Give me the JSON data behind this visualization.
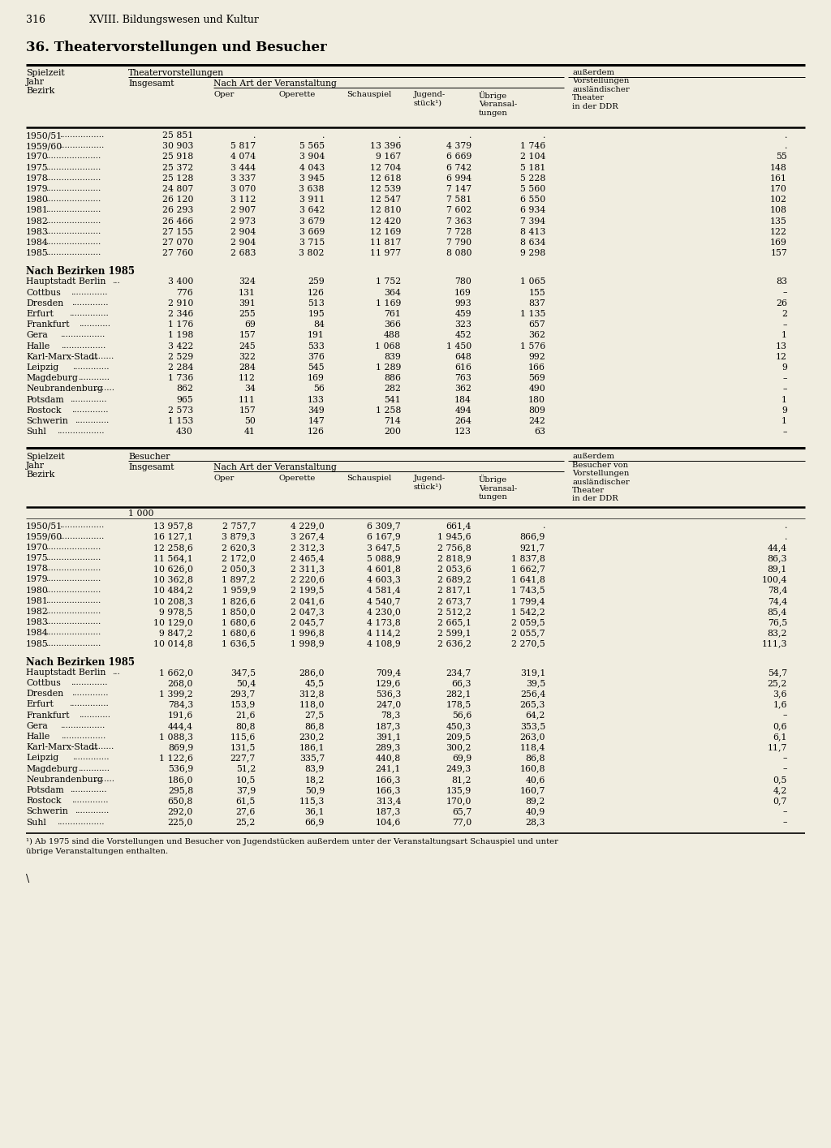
{
  "page_num": "316",
  "chapter": "XVIII. Bildungswesen und Kultur",
  "title": "36. Theatervorstellungen und Besucher",
  "bg_color": "#f0ede0",
  "text_color": "#000000",
  "table1_header_theatervorstellungen": "Theatervorstellungen",
  "table1_header_insgesamt": "Insgesamt",
  "table1_header_nach_art": "Nach Art der Veranstaltung",
  "table2_header_besucher": "Besucher",
  "table2_unit": "1 000",
  "col1_ausland_t1": "außerdem\nVorstellungen\nausländischer\nTheater\nin der DDR",
  "col1_ausland_t2": "außerdem\nBesucher von\nVorstellungen\nausländischer\nTheater\nin der DDR",
  "years_data": [
    [
      "1950/51",
      "25 851",
      ".",
      ".",
      ".",
      ".",
      ".",
      "."
    ],
    [
      "1959/60",
      "30 903",
      "5 817",
      "5 565",
      "13 396",
      "4 379",
      "1 746",
      "."
    ],
    [
      "1970",
      "25 918",
      "4 074",
      "3 904",
      "9 167",
      "6 669",
      "2 104",
      "55"
    ],
    [
      "1975",
      "25 372",
      "3 444",
      "4 043",
      "12 704",
      "6 742",
      "5 181",
      "148"
    ],
    [
      "1978",
      "25 128",
      "3 337",
      "3 945",
      "12 618",
      "6 994",
      "5 228",
      "161"
    ],
    [
      "1979",
      "24 807",
      "3 070",
      "3 638",
      "12 539",
      "7 147",
      "5 560",
      "170"
    ],
    [
      "1980",
      "26 120",
      "3 112",
      "3 911",
      "12 547",
      "7 581",
      "6 550",
      "102"
    ],
    [
      "1981",
      "26 293",
      "2 907",
      "3 642",
      "12 810",
      "7 602",
      "6 934",
      "108"
    ],
    [
      "1982",
      "26 466",
      "2 973",
      "3 679",
      "12 420",
      "7 363",
      "7 394",
      "135"
    ],
    [
      "1983",
      "27 155",
      "2 904",
      "3 669",
      "12 169",
      "7 728",
      "8 413",
      "122"
    ],
    [
      "1984",
      "27 070",
      "2 904",
      "3 715",
      "11 817",
      "7 790",
      "8 634",
      "169"
    ],
    [
      "1985",
      "27 760",
      "2 683",
      "3 802",
      "11 977",
      "8 080",
      "9 298",
      "157"
    ]
  ],
  "bezirk1_label": "Nach Bezirken 1985",
  "bezirk1_data": [
    [
      "Hauptstadt Berlin",
      "3 400",
      "324",
      "259",
      "1 752",
      "780",
      "1 065",
      "83"
    ],
    [
      "Cottbus",
      "776",
      "131",
      "126",
      "364",
      "169",
      "155",
      "–"
    ],
    [
      "Dresden",
      "2 910",
      "391",
      "513",
      "1 169",
      "993",
      "837",
      "26"
    ],
    [
      "Erfurt",
      "2 346",
      "255",
      "195",
      "761",
      "459",
      "1 135",
      "2"
    ],
    [
      "Frankfurt",
      "1 176",
      "69",
      "84",
      "366",
      "323",
      "657",
      "–"
    ],
    [
      "Gera",
      "1 198",
      "157",
      "191",
      "488",
      "452",
      "362",
      "1"
    ],
    [
      "Halle",
      "3 422",
      "245",
      "533",
      "1 068",
      "1 450",
      "1 576",
      "13"
    ],
    [
      "Karl-Marx-Stadt",
      "2 529",
      "322",
      "376",
      "839",
      "648",
      "992",
      "12"
    ],
    [
      "Leipzig",
      "2 284",
      "284",
      "545",
      "1 289",
      "616",
      "166",
      "9"
    ],
    [
      "Magdeburg",
      "1 736",
      "112",
      "169",
      "886",
      "763",
      "569",
      "–"
    ],
    [
      "Neubrandenburg",
      "862",
      "34",
      "56",
      "282",
      "362",
      "490",
      "–"
    ],
    [
      "Potsdam",
      "965",
      "111",
      "133",
      "541",
      "184",
      "180",
      "1"
    ],
    [
      "Rostock",
      "2 573",
      "157",
      "349",
      "1 258",
      "494",
      "809",
      "9"
    ],
    [
      "Schwerin",
      "1 153",
      "50",
      "147",
      "714",
      "264",
      "242",
      "1"
    ],
    [
      "Suhl",
      "430",
      "41",
      "126",
      "200",
      "123",
      "63",
      "–"
    ]
  ],
  "years_data2": [
    [
      "1950/51",
      "13 957,8",
      "2 757,7",
      "4 229,0",
      "6 309,7",
      "661,4",
      ".",
      "."
    ],
    [
      "1959/60",
      "16 127,1",
      "3 879,3",
      "3 267,4",
      "6 167,9",
      "1 945,6",
      "866,9",
      "."
    ],
    [
      "1970",
      "12 258,6",
      "2 620,3",
      "2 312,3",
      "3 647,5",
      "2 756,8",
      "921,7",
      "44,4"
    ],
    [
      "1975",
      "11 564,1",
      "2 172,0",
      "2 465,4",
      "5 088,9",
      "2 818,9",
      "1 837,8",
      "86,3"
    ],
    [
      "1978",
      "10 626,0",
      "2 050,3",
      "2 311,3",
      "4 601,8",
      "2 053,6",
      "1 662,7",
      "89,1"
    ],
    [
      "1979",
      "10 362,8",
      "1 897,2",
      "2 220,6",
      "4 603,3",
      "2 689,2",
      "1 641,8",
      "100,4"
    ],
    [
      "1980",
      "10 484,2",
      "1 959,9",
      "2 199,5",
      "4 581,4",
      "2 817,1",
      "1 743,5",
      "78,4"
    ],
    [
      "1981",
      "10 208,3",
      "1 826,6",
      "2 041,6",
      "4 540,7",
      "2 673,7",
      "1 799,4",
      "74,4"
    ],
    [
      "1982",
      "9 978,5",
      "1 850,0",
      "2 047,3",
      "4 230,0",
      "2 512,2",
      "1 542,2",
      "85,4"
    ],
    [
      "1983",
      "10 129,0",
      "1 680,6",
      "2 045,7",
      "4 173,8",
      "2 665,1",
      "2 059,5",
      "76,5"
    ],
    [
      "1984",
      "9 847,2",
      "1 680,6",
      "1 996,8",
      "4 114,2",
      "2 599,1",
      "2 055,7",
      "83,2"
    ],
    [
      "1985",
      "10 014,8",
      "1 636,5",
      "1 998,9",
      "4 108,9",
      "2 636,2",
      "2 270,5",
      "111,3"
    ]
  ],
  "bezirk2_label": "Nach Bezirken 1985",
  "bezirk2_data": [
    [
      "Hauptstadt Berlin",
      "1 662,0",
      "347,5",
      "286,0",
      "709,4",
      "234,7",
      "319,1",
      "54,7"
    ],
    [
      "Cottbus",
      "268,0",
      "50,4",
      "45,5",
      "129,6",
      "66,3",
      "39,5",
      "25,2"
    ],
    [
      "Dresden",
      "1 399,2",
      "293,7",
      "312,8",
      "536,3",
      "282,1",
      "256,4",
      "3,6"
    ],
    [
      "Erfurt",
      "784,3",
      "153,9",
      "118,0",
      "247,0",
      "178,5",
      "265,3",
      "1,6"
    ],
    [
      "Frankfurt",
      "191,6",
      "21,6",
      "27,5",
      "78,3",
      "56,6",
      "64,2",
      "–"
    ],
    [
      "Gera",
      "444,4",
      "80,8",
      "86,8",
      "187,3",
      "450,3",
      "353,5",
      "0,6"
    ],
    [
      "Halle",
      "1 088,3",
      "115,6",
      "230,2",
      "391,1",
      "209,5",
      "263,0",
      "6,1"
    ],
    [
      "Karl-Marx-Stadt",
      "869,9",
      "131,5",
      "186,1",
      "289,3",
      "300,2",
      "118,4",
      "11,7"
    ],
    [
      "Leipzig",
      "1 122,6",
      "227,7",
      "335,7",
      "440,8",
      "69,9",
      "86,8",
      "–"
    ],
    [
      "Magdeburg",
      "536,9",
      "51,2",
      "83,9",
      "241,1",
      "249,3",
      "160,8",
      "–"
    ],
    [
      "Neubrandenburg",
      "186,0",
      "10,5",
      "18,2",
      "166,3",
      "81,2",
      "40,6",
      "0,5"
    ],
    [
      "Potsdam",
      "295,8",
      "37,9",
      "50,9",
      "166,3",
      "135,9",
      "160,7",
      "4,2"
    ],
    [
      "Rostock",
      "650,8",
      "61,5",
      "115,3",
      "313,4",
      "170,0",
      "89,2",
      "0,7"
    ],
    [
      "Schwerin",
      "292,0",
      "27,6",
      "36,1",
      "187,3",
      "65,7",
      "40,9",
      "–"
    ],
    [
      "Suhl",
      "225,0",
      "25,2",
      "66,9",
      "104,6",
      "77,0",
      "28,3",
      "–"
    ]
  ],
  "footnote_line1": "¹) Ab 1975 sind die Vorstellungen und Besucher von Jugendstücken außerdem unter der Veranstaltungsart Schauspiel und unter",
  "footnote_line2": "übrige Veranstaltungen enthalten."
}
